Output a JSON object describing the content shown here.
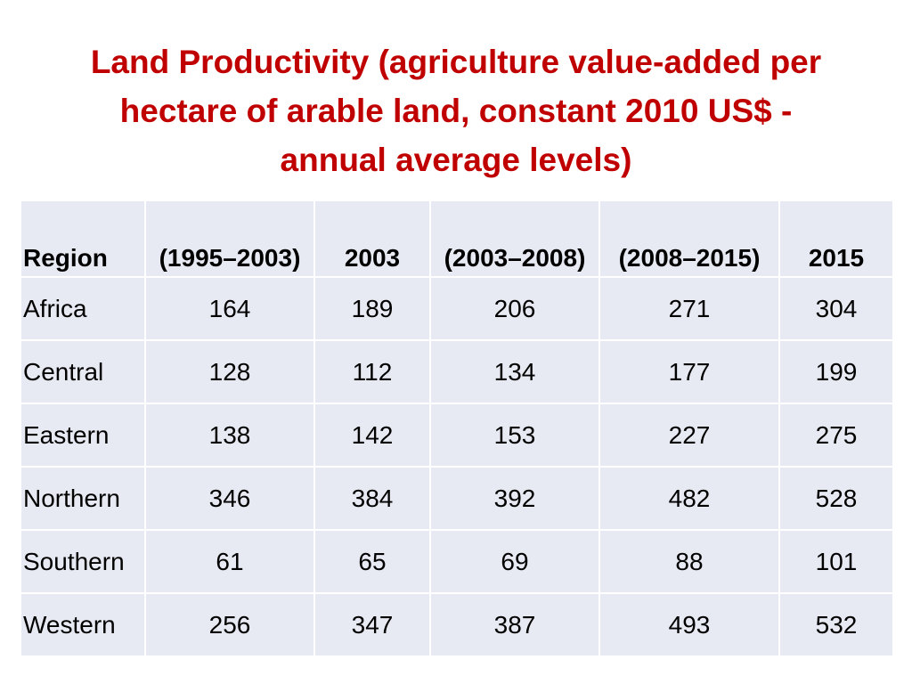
{
  "title": {
    "lines": [
      "Land Productivity (agriculture value-added per",
      "hectare of arable land, constant 2010 US$ -",
      "annual average levels)"
    ]
  },
  "table": {
    "headers": [
      "Region",
      "(1995–2003)",
      "2003",
      "(2003–2008)",
      "(2008–2015)",
      "2015"
    ],
    "rows": [
      [
        "Africa",
        "164",
        "189",
        "206",
        "271",
        "304"
      ],
      [
        "Central",
        "128",
        "112",
        "134",
        "177",
        "199"
      ],
      [
        "Eastern",
        "138",
        "142",
        "153",
        "227",
        "275"
      ],
      [
        "Northern",
        "346",
        "384",
        "392",
        "482",
        "528"
      ],
      [
        "Southern",
        "61",
        "65",
        "69",
        "88",
        "101"
      ],
      [
        "Western",
        "256",
        "347",
        "387",
        "493",
        "532"
      ]
    ]
  }
}
